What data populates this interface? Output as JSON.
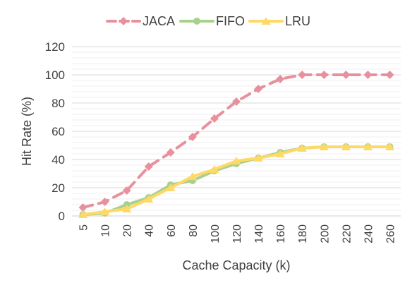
{
  "chart_data": {
    "type": "line",
    "title": "",
    "xlabel": "Cache Capacity (k)",
    "ylabel": "Hit Rate (%)",
    "ylim": [
      0,
      120
    ],
    "yticks": [
      0,
      20,
      40,
      60,
      80,
      100,
      120
    ],
    "grid": true,
    "legend_position": "top",
    "categories": [
      "5",
      "10",
      "20",
      "40",
      "60",
      "80",
      "100",
      "120",
      "140",
      "160",
      "180",
      "200",
      "220",
      "240",
      "260"
    ],
    "series": [
      {
        "name": "JACA",
        "color": "#E8919E",
        "marker": "diamond",
        "dashed": true,
        "values": [
          6,
          10,
          18,
          35,
          45,
          56,
          69,
          81,
          90,
          97,
          100,
          100,
          100,
          100,
          100
        ]
      },
      {
        "name": "FIFO",
        "color": "#A9D18E",
        "marker": "circle",
        "dashed": false,
        "values": [
          1,
          2,
          8,
          13,
          22,
          25,
          32,
          37,
          41,
          45,
          48,
          49,
          49,
          49,
          49
        ]
      },
      {
        "name": "LRU",
        "color": "#FFD966",
        "marker": "triangle",
        "dashed": false,
        "values": [
          1,
          3,
          5,
          12,
          20,
          28,
          33,
          39,
          41,
          44,
          48,
          49,
          49,
          49,
          49
        ]
      }
    ]
  }
}
